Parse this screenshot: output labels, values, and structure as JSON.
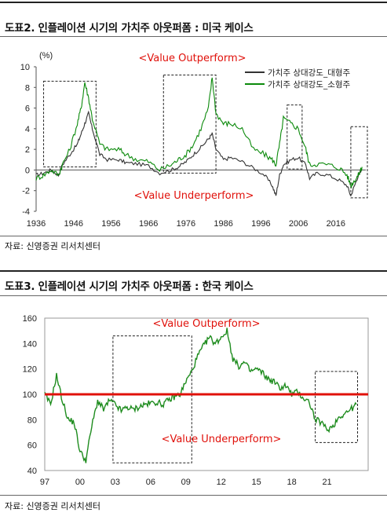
{
  "figures": [
    {
      "title": "도표2. 인플레이션 시기의 가치주 아웃퍼폼 : 미국 케이스",
      "source": "자료: 신영증권 리서치센터"
    },
    {
      "title": "도표3. 인플레이션 시기의 가치주 아웃퍼폼 : 한국 케이스",
      "source": "자료: 신영증권 리서치센터"
    }
  ],
  "colors": {
    "large": "#333333",
    "small": "#0b8a0b",
    "annotation": "#e0100a",
    "korea": "#1e8c1e",
    "baseline": "#e0100a"
  },
  "chart_data": [
    {
      "type": "line",
      "unit_label": "(%)",
      "ylim": [
        -4,
        10
      ],
      "xlim": [
        1936,
        2024
      ],
      "y_ticks": [
        "10",
        "8",
        "6",
        "4",
        "2",
        "0",
        "-2",
        "-4"
      ],
      "x_ticks": [
        "1936",
        "1946",
        "1956",
        "1966",
        "1976",
        "1986",
        "1996",
        "2006",
        "2016"
      ],
      "annotations": [
        "<Value Outperform>",
        "<Value Underperform>"
      ],
      "shaded_periods": [
        [
          1938,
          1952
        ],
        [
          1970,
          1984
        ],
        [
          2003,
          2007
        ],
        [
          2020,
          2025
        ]
      ],
      "legend_position": "top-right",
      "series": [
        {
          "name": "가치주 상대강도_대형주",
          "x": [
            1936,
            1938,
            1940,
            1942,
            1943,
            1945,
            1947,
            1948,
            1949,
            1950,
            1951,
            1953,
            1955,
            1958,
            1960,
            1963,
            1966,
            1969,
            1972,
            1974,
            1976,
            1978,
            1980,
            1982,
            1983,
            1984,
            1986,
            1988,
            1991,
            1994,
            1997,
            1999,
            2000,
            2001,
            2002,
            2004,
            2006,
            2008,
            2009,
            2011,
            2014,
            2017,
            2019,
            2020,
            2021,
            2022,
            2023
          ],
          "values": [
            -0.5,
            -0.3,
            0.0,
            -0.5,
            0.5,
            1.5,
            2.5,
            3.5,
            4.5,
            5.5,
            4.0,
            1.5,
            1.0,
            1.0,
            0.7,
            0.6,
            0.4,
            -0.3,
            0.0,
            0.3,
            0.8,
            1.5,
            2.2,
            3.0,
            3.5,
            2.0,
            1.0,
            1.2,
            0.8,
            0.2,
            -0.5,
            -1.5,
            -2.5,
            -0.5,
            0.5,
            1.0,
            1.2,
            0.5,
            -0.8,
            -0.3,
            -0.5,
            -1.0,
            -1.5,
            -2.5,
            -1.5,
            -0.5,
            0.0
          ]
        },
        {
          "name": "가치주 상대강도_소형주",
          "x": [
            1936,
            1938,
            1940,
            1942,
            1943,
            1945,
            1947,
            1948,
            1949,
            1950,
            1951,
            1953,
            1955,
            1958,
            1960,
            1963,
            1966,
            1969,
            1972,
            1974,
            1976,
            1978,
            1980,
            1982,
            1983,
            1984,
            1986,
            1988,
            1991,
            1994,
            1997,
            1999,
            2000,
            2001,
            2002,
            2004,
            2006,
            2008,
            2009,
            2011,
            2014,
            2017,
            2019,
            2020,
            2021,
            2022,
            2023
          ],
          "values": [
            -0.8,
            -0.5,
            0.0,
            -0.5,
            0.5,
            2.0,
            4.5,
            6.0,
            8.5,
            7.0,
            5.0,
            2.5,
            2.0,
            2.0,
            1.5,
            1.0,
            0.8,
            0.0,
            0.5,
            1.0,
            1.5,
            2.5,
            4.0,
            6.0,
            9.0,
            5.5,
            4.5,
            4.5,
            4.0,
            2.0,
            1.5,
            1.0,
            0.5,
            2.5,
            5.0,
            4.5,
            4.0,
            2.0,
            0.5,
            0.6,
            0.5,
            0.2,
            -0.5,
            -1.5,
            -1.0,
            -0.5,
            0.3
          ]
        }
      ]
    },
    {
      "type": "line",
      "ylim": [
        40,
        160
      ],
      "xlim": [
        1997,
        2024.5
      ],
      "y_ticks": [
        "160",
        "140",
        "120",
        "100",
        "80",
        "60",
        "40"
      ],
      "x_ticks": [
        "97",
        "00",
        "03",
        "06",
        "09",
        "12",
        "15",
        "18",
        "21"
      ],
      "reference_line": 100,
      "annotations": [
        "<Value Outperform>",
        "<Value Underperform>"
      ],
      "shaded_periods": [
        [
          2002.8,
          2009.5
        ],
        [
          2020.0,
          2023.6
        ]
      ],
      "series": [
        {
          "x": [
            1997,
            1997.5,
            1998,
            1998.5,
            1999,
            1999.5,
            2000,
            2000.5,
            2001,
            2001.5,
            2002,
            2002.5,
            2003,
            2003.5,
            2004,
            2004.5,
            2005,
            2005.5,
            2006,
            2006.5,
            2007,
            2007.5,
            2008,
            2008.5,
            2009,
            2009.5,
            2010,
            2010.5,
            2011,
            2011.5,
            2012,
            2012.5,
            2013,
            2013.5,
            2014,
            2014.5,
            2015,
            2015.5,
            2016,
            2016.5,
            2017,
            2017.5,
            2018,
            2018.5,
            2019,
            2019.5,
            2020,
            2020.5,
            2021,
            2021.5,
            2022,
            2022.5,
            2023,
            2023.5
          ],
          "values": [
            100,
            92,
            115,
            95,
            80,
            78,
            55,
            48,
            75,
            95,
            88,
            95,
            92,
            87,
            90,
            88,
            90,
            92,
            93,
            94,
            92,
            95,
            98,
            100,
            110,
            118,
            130,
            138,
            145,
            140,
            145,
            150,
            128,
            122,
            125,
            118,
            120,
            117,
            112,
            110,
            105,
            107,
            100,
            102,
            97,
            94,
            80,
            78,
            72,
            75,
            82,
            85,
            88,
            92
          ]
        }
      ]
    }
  ]
}
